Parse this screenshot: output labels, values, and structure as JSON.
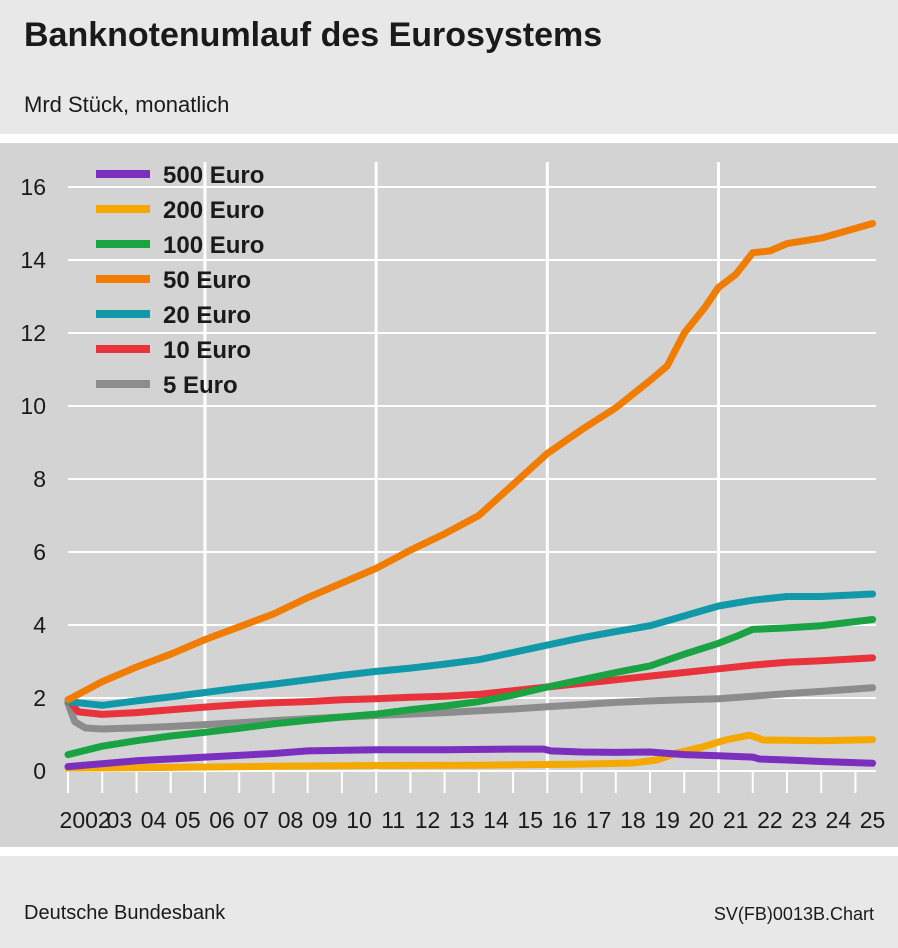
{
  "header": {
    "title": "Banknotenumlauf des Eurosystems",
    "subtitle": "Mrd Stück, monatlich"
  },
  "footer": {
    "source": "Deutsche Bundesbank",
    "chart_id": "SV(FB)0013B.Chart"
  },
  "colors": {
    "panel_bg": "#d3d3d3",
    "header_bg": "#e8e8e8",
    "grid": "#ffffff"
  },
  "chart_data": {
    "type": "line",
    "title": "Banknotenumlauf des Eurosystems",
    "subtitle": "Mrd Stück, monatlich",
    "xlabel": "",
    "ylabel": "",
    "ylim": [
      0,
      16
    ],
    "yticks": [
      0,
      2,
      4,
      6,
      8,
      10,
      12,
      14,
      16
    ],
    "xlim": [
      2002,
      2025.6
    ],
    "xticks": [
      "2002",
      "03",
      "04",
      "05",
      "06",
      "07",
      "08",
      "09",
      "10",
      "11",
      "12",
      "13",
      "14",
      "15",
      "16",
      "17",
      "18",
      "19",
      "20",
      "21",
      "22",
      "23",
      "24",
      "25"
    ],
    "grid": "white",
    "legend_position": "top-left",
    "series": [
      {
        "name": "500 Euro",
        "color": "#7b2fbe",
        "x": [
          2002,
          2004,
          2006,
          2008,
          2009,
          2011,
          2013,
          2015,
          2015.9,
          2016.1,
          2017,
          2018,
          2019,
          2020,
          2021,
          2022,
          2022.2,
          2023,
          2024,
          2025.5
        ],
        "y": [
          0.12,
          0.28,
          0.38,
          0.48,
          0.55,
          0.58,
          0.58,
          0.6,
          0.6,
          0.55,
          0.52,
          0.51,
          0.52,
          0.45,
          0.42,
          0.38,
          0.33,
          0.3,
          0.26,
          0.21
        ]
      },
      {
        "name": "200 Euro",
        "color": "#f5a800",
        "x": [
          2002,
          2005,
          2008,
          2011,
          2014,
          2017,
          2018.5,
          2019.2,
          2019.8,
          2020.5,
          2021.2,
          2021.9,
          2022.1,
          2022.3,
          2023,
          2024,
          2025.5
        ],
        "y": [
          0.08,
          0.1,
          0.13,
          0.15,
          0.16,
          0.19,
          0.22,
          0.3,
          0.5,
          0.65,
          0.85,
          0.98,
          0.92,
          0.85,
          0.84,
          0.83,
          0.86
        ]
      },
      {
        "name": "100 Euro",
        "color": "#1aa342",
        "x": [
          2002,
          2003,
          2004,
          2005,
          2006,
          2007,
          2008,
          2009,
          2010,
          2011,
          2012,
          2013,
          2014,
          2015,
          2016,
          2017,
          2018,
          2019,
          2020,
          2021,
          2021.6,
          2022,
          2023,
          2024,
          2025.5
        ],
        "y": [
          0.45,
          0.68,
          0.83,
          0.96,
          1.06,
          1.17,
          1.29,
          1.39,
          1.48,
          1.56,
          1.68,
          1.78,
          1.9,
          2.08,
          2.3,
          2.5,
          2.7,
          2.88,
          3.2,
          3.5,
          3.72,
          3.88,
          3.92,
          3.98,
          4.15
        ]
      },
      {
        "name": "50 Euro",
        "color": "#f07d00",
        "x": [
          2002,
          2003,
          2004,
          2005,
          2006,
          2007,
          2008,
          2009,
          2010,
          2011,
          2012,
          2013,
          2014,
          2015,
          2016,
          2017,
          2018,
          2019,
          2019.5,
          2020,
          2020.6,
          2021,
          2021.5,
          2022,
          2022.5,
          2023,
          2024,
          2025.5
        ],
        "y": [
          1.95,
          2.45,
          2.85,
          3.2,
          3.6,
          3.95,
          4.3,
          4.75,
          5.15,
          5.55,
          6.05,
          6.5,
          7.0,
          7.85,
          8.7,
          9.35,
          9.95,
          10.7,
          11.1,
          12.0,
          12.7,
          13.25,
          13.6,
          14.2,
          14.25,
          14.45,
          14.6,
          15.0
        ]
      },
      {
        "name": "20 Euro",
        "color": "#1199aa",
        "x": [
          2002,
          2003,
          2004,
          2005,
          2006,
          2007,
          2008,
          2009,
          2010,
          2011,
          2012,
          2013,
          2014,
          2015,
          2016,
          2017,
          2018,
          2019,
          2020,
          2021,
          2022,
          2023,
          2024,
          2025.5
        ],
        "y": [
          1.9,
          1.8,
          1.92,
          2.03,
          2.15,
          2.27,
          2.38,
          2.5,
          2.62,
          2.73,
          2.82,
          2.93,
          3.05,
          3.25,
          3.45,
          3.65,
          3.82,
          3.98,
          4.25,
          4.52,
          4.68,
          4.78,
          4.78,
          4.85
        ]
      },
      {
        "name": "10 Euro",
        "color": "#e8323c",
        "x": [
          2002,
          2002.3,
          2003,
          2004,
          2005,
          2006,
          2007,
          2008,
          2009,
          2010,
          2011,
          2012,
          2013,
          2014,
          2015,
          2016,
          2017,
          2018,
          2019,
          2020,
          2021,
          2022,
          2023,
          2024,
          2025.5
        ],
        "y": [
          1.95,
          1.62,
          1.55,
          1.6,
          1.68,
          1.75,
          1.82,
          1.87,
          1.9,
          1.95,
          1.98,
          2.02,
          2.05,
          2.1,
          2.2,
          2.3,
          2.4,
          2.5,
          2.6,
          2.7,
          2.8,
          2.9,
          2.98,
          3.02,
          3.1
        ]
      },
      {
        "name": "5 Euro",
        "color": "#8c8c8c",
        "x": [
          2002,
          2002.2,
          2002.5,
          2003,
          2004,
          2005,
          2006,
          2007,
          2008,
          2009,
          2010,
          2011,
          2012,
          2013,
          2014,
          2015,
          2016,
          2017,
          2018,
          2019,
          2020,
          2021,
          2022,
          2023,
          2024,
          2025.5
        ],
        "y": [
          1.85,
          1.35,
          1.18,
          1.15,
          1.18,
          1.22,
          1.27,
          1.32,
          1.38,
          1.43,
          1.48,
          1.52,
          1.56,
          1.6,
          1.65,
          1.7,
          1.76,
          1.82,
          1.88,
          1.92,
          1.95,
          1.98,
          2.05,
          2.12,
          2.18,
          2.28
        ]
      }
    ]
  }
}
